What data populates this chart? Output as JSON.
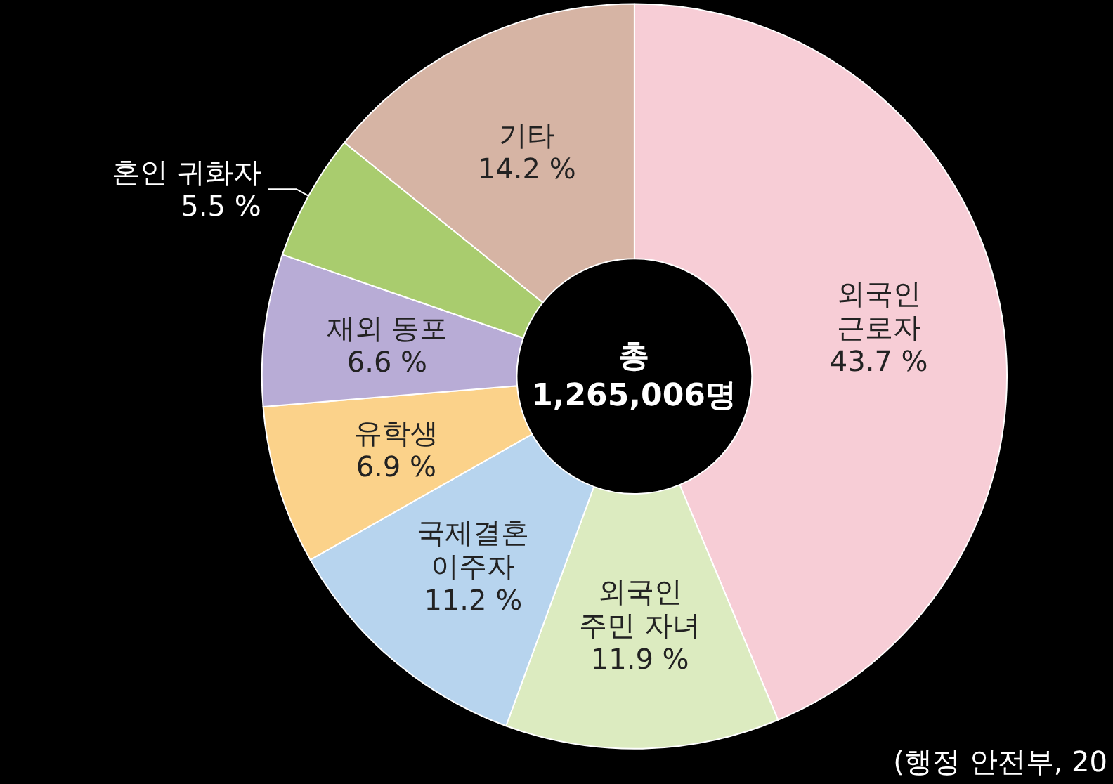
{
  "chart_data": {
    "type": "donut",
    "categories": [
      "외국인 근로자",
      "외국인 주민 자녀",
      "국제결혼 이주자",
      "유학생",
      "재외 동포",
      "혼인 귀화자",
      "기타"
    ],
    "values": [
      43.7,
      11.9,
      11.2,
      6.9,
      6.6,
      5.5,
      14.2
    ],
    "value_labels": [
      "43.7 %",
      "11.9 %",
      "11.2 %",
      "6.9 %",
      "6.6 %",
      "5.5 %",
      "14.2 %"
    ],
    "colors": [
      "#f7cdd6",
      "#dcebc0",
      "#b7d4ee",
      "#fbd28a",
      "#b8acd6",
      "#a9cc6e",
      "#d6b4a4"
    ],
    "legend": false,
    "annotations": [
      "총 1,265,006명",
      "(행정 안전부, 20"
    ]
  }
}
